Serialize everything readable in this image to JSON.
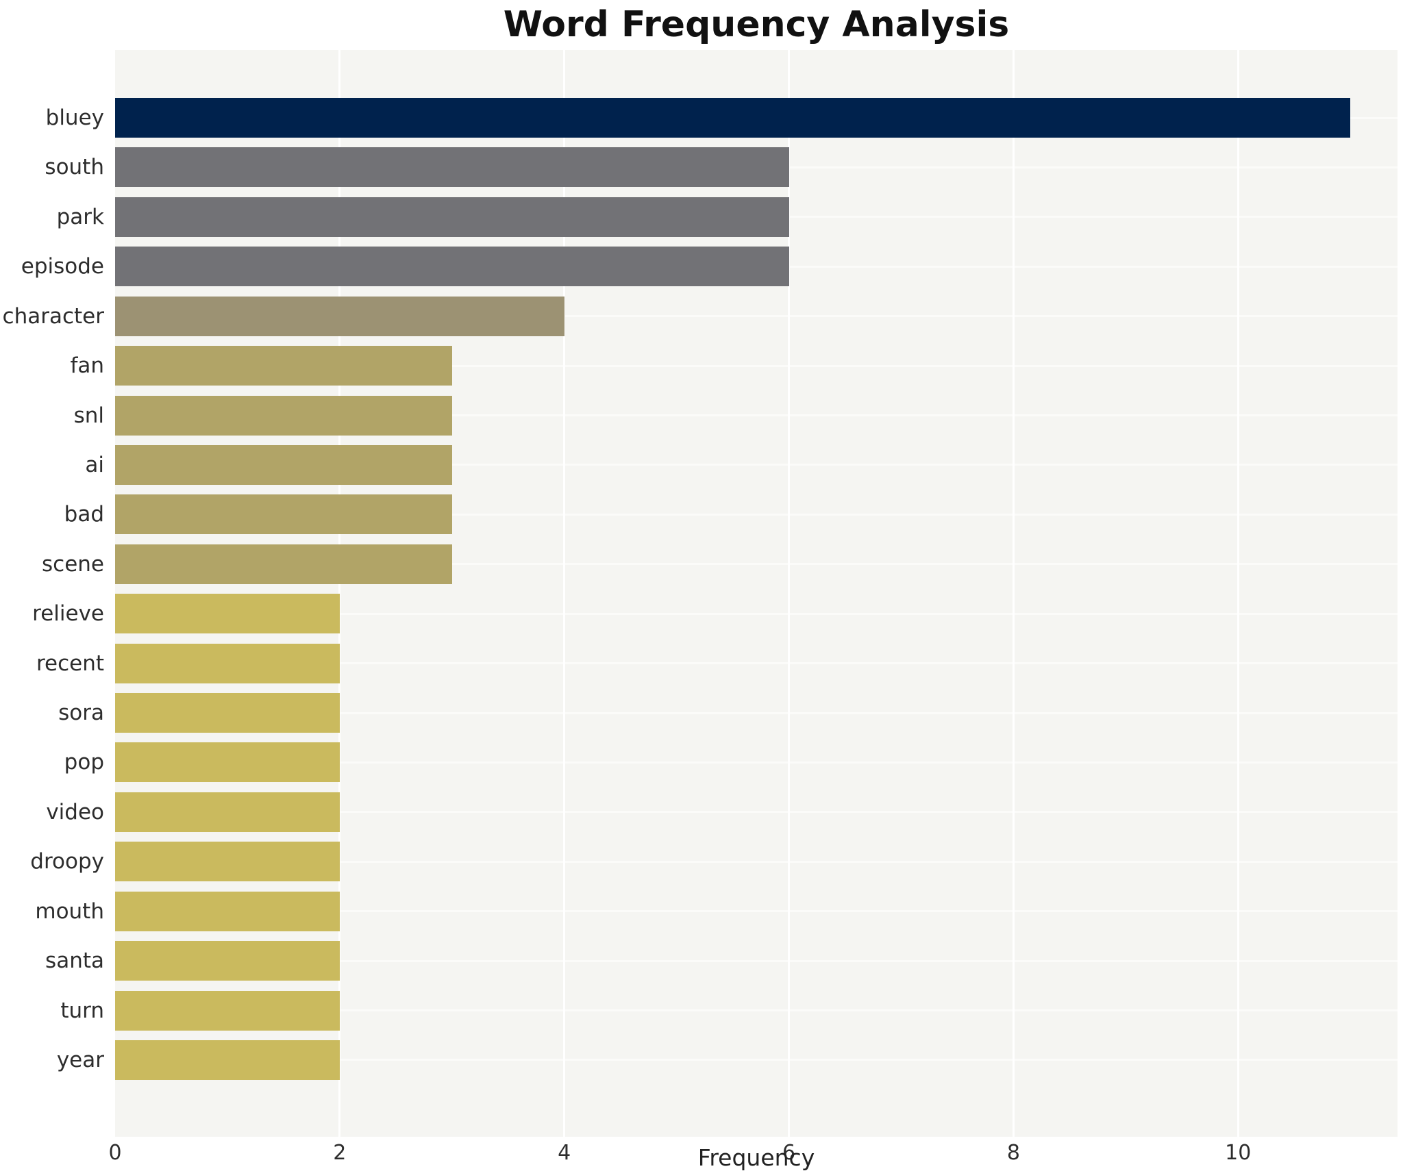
{
  "chart_data": {
    "type": "bar",
    "orientation": "horizontal",
    "title": "Word Frequency Analysis",
    "xlabel": "Frequency",
    "ylabel": "",
    "categories": [
      "bluey",
      "south",
      "park",
      "episode",
      "character",
      "fan",
      "snl",
      "ai",
      "bad",
      "scene",
      "relieve",
      "recent",
      "sora",
      "pop",
      "video",
      "droopy",
      "mouth",
      "santa",
      "turn",
      "year"
    ],
    "values": [
      11,
      6,
      6,
      6,
      4,
      3,
      3,
      3,
      3,
      3,
      2,
      2,
      2,
      2,
      2,
      2,
      2,
      2,
      2,
      2
    ],
    "xticks": [
      0,
      2,
      4,
      6,
      8,
      10
    ],
    "xlim": [
      0,
      11.42
    ],
    "grid": true,
    "legend": false,
    "colors": {
      "plot_background": "#f5f5f2",
      "canvas_background": "#ffffff",
      "gridline": "#ffffff",
      "title_text": "#111111",
      "label_text": "#2d2d2d",
      "value_color_map": {
        "11": "#00224d",
        "6": "#727276",
        "4": "#9c9273",
        "3": "#b1a467",
        "2": "#caba5e"
      }
    }
  }
}
